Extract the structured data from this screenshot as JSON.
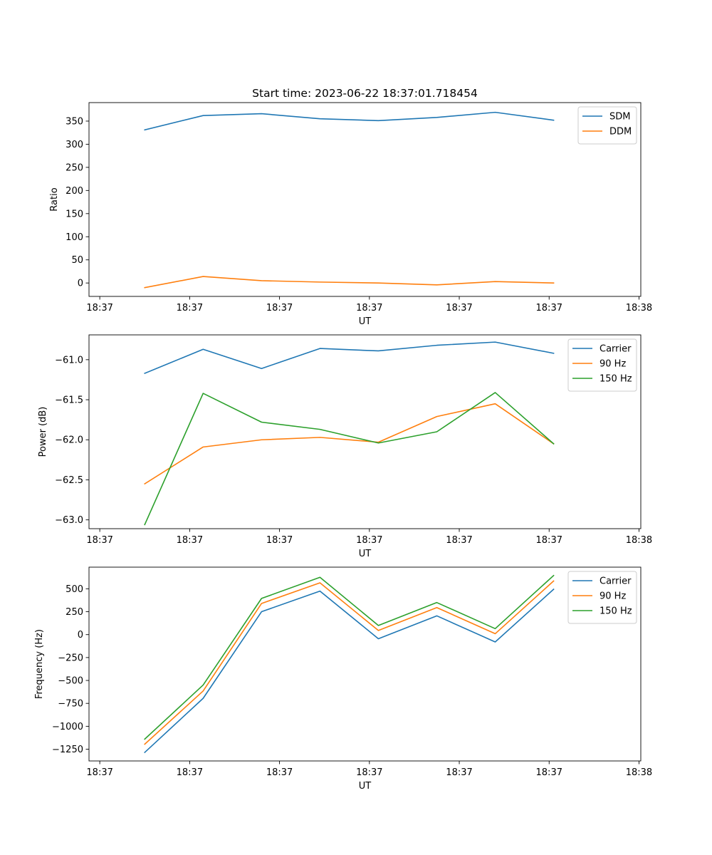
{
  "figure": {
    "title": "Start time: 2023-06-22 18:37:01.718454"
  },
  "chart_data": [
    {
      "type": "line",
      "title": "Start time: 2023-06-22 18:37:01.718454",
      "xlabel": "UT",
      "ylabel": "Ratio",
      "x_ticks": [
        "18:37",
        "18:37",
        "18:37",
        "18:37",
        "18:37",
        "18:37",
        "18:38"
      ],
      "x_tick_seconds": [
        0,
        10,
        20,
        30,
        40,
        50,
        60
      ],
      "x_seconds": [
        5,
        11.5,
        18,
        24.5,
        31,
        37.5,
        44,
        50.5
      ],
      "xlim": [
        -1.2,
        60.2
      ],
      "y_ticks": [
        0,
        50,
        100,
        150,
        200,
        250,
        300,
        350
      ],
      "ylim": [
        -29,
        390
      ],
      "legend": "top-right",
      "grid": false,
      "series": [
        {
          "name": "SDM",
          "color": "#1f77b4",
          "values": [
            331,
            362,
            366,
            355,
            351,
            358,
            369,
            352
          ]
        },
        {
          "name": "DDM",
          "color": "#ff7f0e",
          "values": [
            -10,
            14,
            5,
            2,
            0,
            -4,
            3,
            0
          ]
        }
      ]
    },
    {
      "type": "line",
      "title": "",
      "xlabel": "UT",
      "ylabel": "Power (dB)",
      "x_ticks": [
        "18:37",
        "18:37",
        "18:37",
        "18:37",
        "18:37",
        "18:37",
        "18:38"
      ],
      "x_tick_seconds": [
        0,
        10,
        20,
        30,
        40,
        50,
        60
      ],
      "x_seconds": [
        5,
        11.5,
        18,
        24.5,
        31,
        37.5,
        44,
        50.5
      ],
      "xlim": [
        -1.2,
        60.2
      ],
      "y_ticks": [
        -63.0,
        -62.5,
        -62.0,
        -61.5,
        -61.0
      ],
      "y_tick_labels": [
        "−63.0",
        "−62.5",
        "−62.0",
        "−61.5",
        "−61.0"
      ],
      "ylim": [
        -63.11,
        -60.69
      ],
      "legend": "top-right",
      "grid": false,
      "series": [
        {
          "name": "Carrier",
          "color": "#1f77b4",
          "values": [
            -61.17,
            -60.87,
            -61.11,
            -60.86,
            -60.89,
            -60.82,
            -60.78,
            -60.92
          ]
        },
        {
          "name": "90 Hz",
          "color": "#ff7f0e",
          "values": [
            -62.55,
            -62.09,
            -62.0,
            -61.97,
            -62.03,
            -61.71,
            -61.55,
            -62.05
          ]
        },
        {
          "name": "150 Hz",
          "color": "#2ca02c",
          "values": [
            -63.06,
            -61.42,
            -61.78,
            -61.87,
            -62.04,
            -61.9,
            -61.41,
            -62.05
          ]
        }
      ]
    },
    {
      "type": "line",
      "title": "",
      "xlabel": "UT",
      "ylabel": "Frequency (Hz)",
      "x_ticks": [
        "18:37",
        "18:37",
        "18:37",
        "18:37",
        "18:37",
        "18:37",
        "18:38"
      ],
      "x_tick_seconds": [
        0,
        10,
        20,
        30,
        40,
        50,
        60
      ],
      "x_seconds": [
        5,
        11.5,
        18,
        24.5,
        31,
        37.5,
        44,
        50.5
      ],
      "xlim": [
        -1.2,
        60.2
      ],
      "y_ticks": [
        -1250,
        -1000,
        -750,
        -500,
        -250,
        0,
        250,
        500
      ],
      "y_tick_labels": [
        "−1250",
        "−1000",
        "−750",
        "−500",
        "−250",
        "0",
        "250",
        "500"
      ],
      "ylim": [
        -1378,
        736
      ],
      "legend": "top-right",
      "grid": false,
      "series": [
        {
          "name": "Carrier",
          "color": "#1f77b4",
          "values": [
            -1285,
            -695,
            250,
            475,
            -45,
            205,
            -80,
            495
          ]
        },
        {
          "name": "90 Hz",
          "color": "#ff7f0e",
          "values": [
            -1195,
            -615,
            340,
            565,
            45,
            295,
            10,
            585
          ]
        },
        {
          "name": "150 Hz",
          "color": "#2ca02c",
          "values": [
            -1140,
            -550,
            395,
            625,
            100,
            350,
            65,
            645
          ]
        }
      ]
    }
  ]
}
